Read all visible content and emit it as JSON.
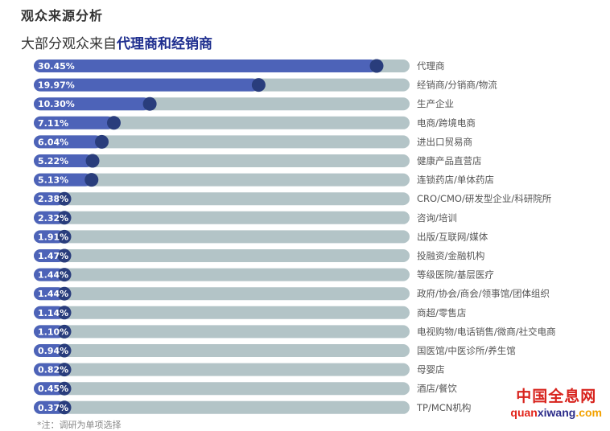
{
  "title": "观众来源分析",
  "subtitle_prefix": "大部分观众来自",
  "subtitle_highlight": "代理商和经销商",
  "note": "*注：调研为单项选择",
  "watermark": {
    "cn": "中国全息网",
    "en_a": "quan",
    "en_b": "xiwang",
    "en_c": ".com"
  },
  "colors": {
    "track": "#b3c4c7",
    "fill": "#4d63b8",
    "knob": "#293d7c",
    "pct_text": "#ffffff",
    "label_text": "#555555"
  },
  "chart_data": {
    "type": "bar",
    "orientation": "horizontal",
    "ylim": [
      0,
      35
    ],
    "categories": [
      "代理商",
      "经销商/分销商/物流",
      "生产企业",
      "电商/跨境电商",
      "进出口贸易商",
      "健康产品直营店",
      "连锁药店/单体药店",
      "CRO/CMO/研发型企业/科研院所",
      "咨询/培训",
      "出版/互联网/媒体",
      "投融资/金融机构",
      "等级医院/基层医疗",
      "政府/协会/商会/领事馆/团体组织",
      "商超/零售店",
      "电视购物/电话销售/微商/社交电商",
      "国医馆/中医诊所/养生馆",
      "母婴店",
      "酒店/餐饮",
      "TP/MCN机构"
    ],
    "values": [
      30.45,
      19.97,
      10.3,
      7.11,
      6.04,
      5.22,
      5.13,
      2.38,
      2.32,
      1.91,
      1.47,
      1.44,
      1.44,
      1.14,
      1.1,
      0.94,
      0.82,
      0.45,
      0.37
    ],
    "labels": [
      "30.45%",
      "19.97%",
      "10.30%",
      "7.11%",
      "6.04%",
      "5.22%",
      "5.13%",
      "2.38%",
      "2.32%",
      "1.91%",
      "1.47%",
      "1.44%",
      "1.44%",
      "1.14%",
      "1.10%",
      "0.94%",
      "0.82%",
      "0.45%",
      "0.37%"
    ]
  }
}
